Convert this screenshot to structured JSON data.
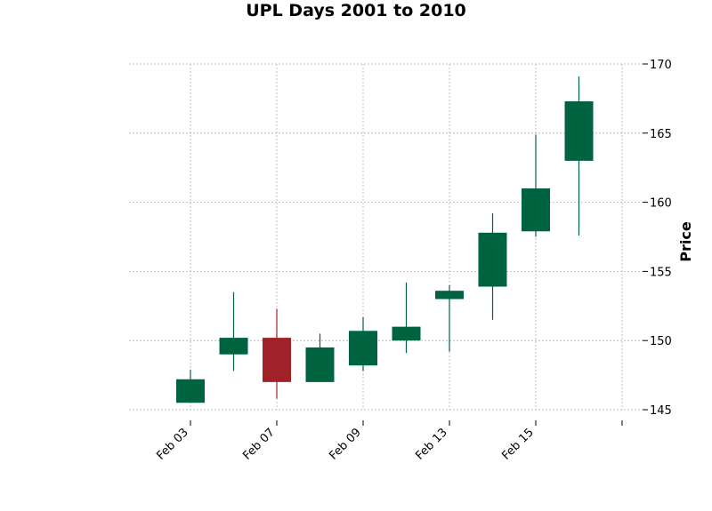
{
  "chart_data": {
    "type": "candlestick",
    "title": "UPL Days 2001 to 2010",
    "xlabel": "",
    "ylabel": "Price",
    "ylim": [
      144.3,
      170.5
    ],
    "yticks": [
      145,
      150,
      155,
      160,
      165,
      170
    ],
    "grid": true,
    "y_axis_side": "right",
    "colors": {
      "up": "#006340",
      "down": "#a02128",
      "grid": "#b0b0b0"
    },
    "xtick_labels": [
      {
        "index": 0,
        "label": "Feb 03"
      },
      {
        "index": 2,
        "label": "Feb 07"
      },
      {
        "index": 4,
        "label": "Feb 09"
      },
      {
        "index": 6,
        "label": "Feb 13"
      },
      {
        "index": 8,
        "label": "Feb 15"
      },
      {
        "index": 10,
        "label": ""
      }
    ],
    "candles": [
      {
        "open": 145.5,
        "high": 147.9,
        "low": 145.5,
        "close": 147.2
      },
      {
        "open": 149.0,
        "high": 153.5,
        "low": 147.8,
        "close": 150.2
      },
      {
        "open": 150.2,
        "high": 152.3,
        "low": 145.8,
        "close": 147.0
      },
      {
        "open": 147.0,
        "high": 150.5,
        "low": 147.0,
        "close": 149.5
      },
      {
        "open": 148.2,
        "high": 151.7,
        "low": 147.8,
        "close": 150.7
      },
      {
        "open": 150.0,
        "high": 154.2,
        "low": 149.1,
        "close": 151.0
      },
      {
        "open": 153.0,
        "high": 154.0,
        "low": 149.2,
        "close": 153.6
      },
      {
        "open": 153.9,
        "high": 159.2,
        "low": 151.5,
        "close": 157.8
      },
      {
        "open": 157.9,
        "high": 164.9,
        "low": 157.5,
        "close": 161.0
      },
      {
        "open": 163.0,
        "high": 169.1,
        "low": 157.6,
        "close": 167.3
      }
    ]
  }
}
